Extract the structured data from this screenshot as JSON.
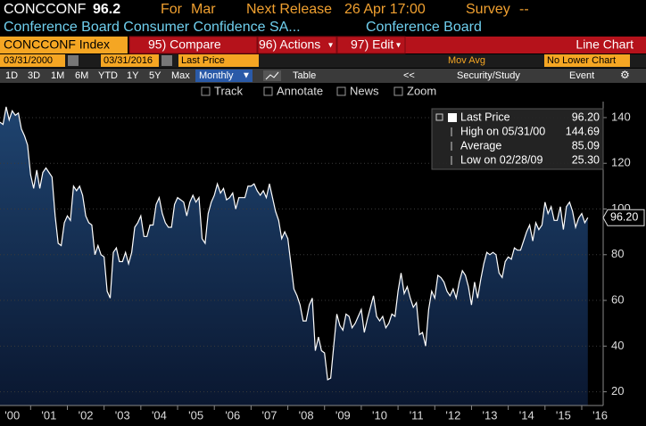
{
  "header": {
    "ticker": "CONCCONF",
    "last": "96.2",
    "period_label": "For",
    "period": "Mar",
    "next_release_label": "Next Release",
    "next_release": "26 Apr 17:00",
    "survey_label": "Survey",
    "survey": "--"
  },
  "description": {
    "name": "Conference Board Consumer Confidence SA...",
    "source": "Conference Board"
  },
  "toolbar": {
    "security": "CONCCONF Index",
    "buttons": [
      "95) Compare",
      "96) Actions",
      "97) Edit"
    ],
    "chart_type": "Line Chart"
  },
  "range": {
    "start": "03/31/2000",
    "end": "03/31/2016",
    "field": "Last Price",
    "study": "Mov Avg",
    "lower": "No Lower Chart"
  },
  "periods": [
    "1D",
    "3D",
    "1M",
    "6M",
    "YTD",
    "1Y",
    "5Y",
    "Max"
  ],
  "frequency": "Monthly",
  "table": "Table",
  "security_study": "Security/Study",
  "event": "Event",
  "tools": [
    "Track",
    "Annotate",
    "News",
    "Zoom"
  ],
  "chart_data": {
    "type": "line",
    "legend": [
      {
        "label": "Last Price",
        "value": "96.20"
      },
      {
        "label": "High on 05/31/00",
        "value": "144.69"
      },
      {
        "label": "Average",
        "value": "85.09"
      },
      {
        "label": "Low on 02/28/09",
        "value": "25.30"
      }
    ],
    "price_tag": "96.20",
    "x": [
      "2000-03",
      "2000-04",
      "2000-05",
      "2000-06",
      "2000-07",
      "2000-08",
      "2000-09",
      "2000-10",
      "2000-11",
      "2000-12",
      "2001-01",
      "2001-02",
      "2001-03",
      "2001-04",
      "2001-05",
      "2001-06",
      "2001-07",
      "2001-08",
      "2001-09",
      "2001-10",
      "2001-11",
      "2001-12",
      "2002-01",
      "2002-02",
      "2002-03",
      "2002-04",
      "2002-05",
      "2002-06",
      "2002-07",
      "2002-08",
      "2002-09",
      "2002-10",
      "2002-11",
      "2002-12",
      "2003-01",
      "2003-02",
      "2003-03",
      "2003-04",
      "2003-05",
      "2003-06",
      "2003-07",
      "2003-08",
      "2003-09",
      "2003-10",
      "2003-11",
      "2003-12",
      "2004-01",
      "2004-02",
      "2004-03",
      "2004-04",
      "2004-05",
      "2004-06",
      "2004-07",
      "2004-08",
      "2004-09",
      "2004-10",
      "2004-11",
      "2004-12",
      "2005-01",
      "2005-02",
      "2005-03",
      "2005-04",
      "2005-05",
      "2005-06",
      "2005-07",
      "2005-08",
      "2005-09",
      "2005-10",
      "2005-11",
      "2005-12",
      "2006-01",
      "2006-02",
      "2006-03",
      "2006-04",
      "2006-05",
      "2006-06",
      "2006-07",
      "2006-08",
      "2006-09",
      "2006-10",
      "2006-11",
      "2006-12",
      "2007-01",
      "2007-02",
      "2007-03",
      "2007-04",
      "2007-05",
      "2007-06",
      "2007-07",
      "2007-08",
      "2007-09",
      "2007-10",
      "2007-11",
      "2007-12",
      "2008-01",
      "2008-02",
      "2008-03",
      "2008-04",
      "2008-05",
      "2008-06",
      "2008-07",
      "2008-08",
      "2008-09",
      "2008-10",
      "2008-11",
      "2008-12",
      "2009-01",
      "2009-02",
      "2009-03",
      "2009-04",
      "2009-05",
      "2009-06",
      "2009-07",
      "2009-08",
      "2009-09",
      "2009-10",
      "2009-11",
      "2009-12",
      "2010-01",
      "2010-02",
      "2010-03",
      "2010-04",
      "2010-05",
      "2010-06",
      "2010-07",
      "2010-08",
      "2010-09",
      "2010-10",
      "2010-11",
      "2010-12",
      "2011-01",
      "2011-02",
      "2011-03",
      "2011-04",
      "2011-05",
      "2011-06",
      "2011-07",
      "2011-08",
      "2011-09",
      "2011-10",
      "2011-11",
      "2011-12",
      "2012-01",
      "2012-02",
      "2012-03",
      "2012-04",
      "2012-05",
      "2012-06",
      "2012-07",
      "2012-08",
      "2012-09",
      "2012-10",
      "2012-11",
      "2012-12",
      "2013-01",
      "2013-02",
      "2013-03",
      "2013-04",
      "2013-05",
      "2013-06",
      "2013-07",
      "2013-08",
      "2013-09",
      "2013-10",
      "2013-11",
      "2013-12",
      "2014-01",
      "2014-02",
      "2014-03",
      "2014-04",
      "2014-05",
      "2014-06",
      "2014-07",
      "2014-08",
      "2014-09",
      "2014-10",
      "2014-11",
      "2014-12",
      "2015-01",
      "2015-02",
      "2015-03",
      "2015-04",
      "2015-05",
      "2015-06",
      "2015-07",
      "2015-08",
      "2015-09",
      "2015-10",
      "2015-11",
      "2015-12",
      "2016-01",
      "2016-02",
      "2016-03"
    ],
    "series": [
      {
        "name": "Last Price",
        "color": "#ffffff",
        "values": [
          138,
          137,
          144.69,
          139,
          143,
          141,
          142,
          135,
          132,
          128,
          115,
          109,
          117,
          109,
          116,
          118,
          116,
          114,
          97,
          85,
          84,
          94,
          97,
          95,
          110,
          108,
          110,
          106,
          97,
          94,
          93,
          80,
          84,
          80,
          79,
          64,
          61,
          81,
          83,
          77,
          77,
          81,
          76,
          81,
          92,
          94,
          97,
          88,
          88,
          93,
          93,
          102,
          105,
          98,
          94,
          92,
          92,
          102,
          105,
          104,
          103,
          97,
          103,
          106,
          103,
          105,
          87,
          85,
          98,
          103,
          106,
          111,
          107,
          109,
          104,
          105,
          107,
          100,
          105,
          105,
          105,
          110,
          110,
          111,
          108,
          106,
          108,
          105,
          111,
          105,
          99,
          95,
          87,
          90,
          87,
          76,
          65,
          62,
          58,
          51,
          51,
          58,
          61,
          38,
          44,
          38,
          37,
          25.3,
          26,
          40,
          54,
          49,
          47,
          54,
          53,
          48,
          50,
          53,
          56,
          46,
          52,
          57,
          62,
          53,
          51,
          53,
          48,
          50,
          54,
          53,
          64,
          72,
          63,
          66,
          61,
          57,
          59,
          45,
          46,
          40,
          56,
          64,
          61,
          71,
          70,
          68,
          64,
          62,
          65,
          61,
          68,
          73,
          71,
          66,
          58,
          68,
          61,
          69,
          76,
          81,
          80,
          81,
          80,
          72,
          70,
          77,
          79,
          78,
          83,
          82,
          82,
          86,
          90,
          93,
          86,
          94,
          91,
          93,
          103,
          98,
          101,
          95,
          95,
          101,
          91,
          101,
          103,
          99,
          92,
          96,
          98,
          94,
          96.2
        ]
      }
    ],
    "xlim": [
      "2000-03",
      "2016-08"
    ],
    "xticks": [
      {
        "value": "2000-01",
        "label": "'00"
      },
      {
        "value": "2001-01",
        "label": "'01"
      },
      {
        "value": "2002-01",
        "label": "'02"
      },
      {
        "value": "2003-01",
        "label": "'03"
      },
      {
        "value": "2004-01",
        "label": "'04"
      },
      {
        "value": "2005-01",
        "label": "'05"
      },
      {
        "value": "2006-01",
        "label": "'06"
      },
      {
        "value": "2007-01",
        "label": "'07"
      },
      {
        "value": "2008-01",
        "label": "'08"
      },
      {
        "value": "2009-01",
        "label": "'09"
      },
      {
        "value": "2010-01",
        "label": "'10"
      },
      {
        "value": "2011-01",
        "label": "'11"
      },
      {
        "value": "2012-01",
        "label": "'12"
      },
      {
        "value": "2013-01",
        "label": "'13"
      },
      {
        "value": "2014-01",
        "label": "'14"
      },
      {
        "value": "2015-01",
        "label": "'15"
      },
      {
        "value": "2016-01",
        "label": "'16"
      }
    ],
    "ylim": [
      14,
      147
    ],
    "yticks": [
      20,
      40,
      60,
      80,
      100,
      120,
      140
    ],
    "grid": true,
    "fill": [
      "#1f4470",
      "#0a1730"
    ]
  }
}
